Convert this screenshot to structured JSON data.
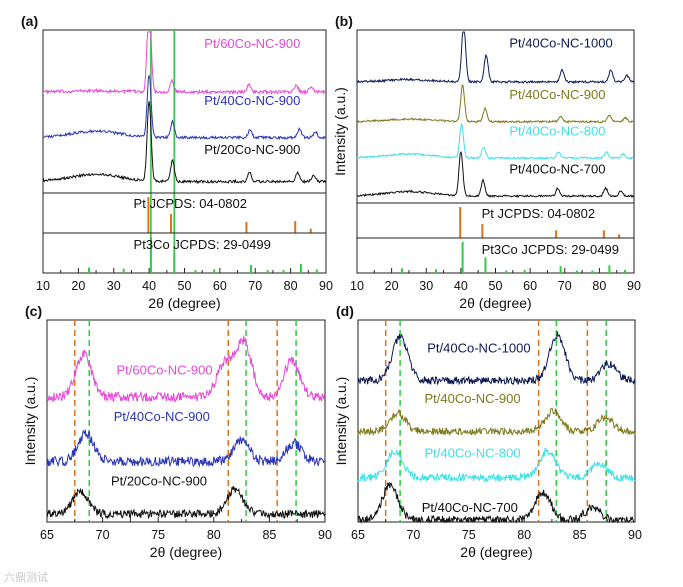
{
  "chart_data": [
    {
      "type": "line",
      "panel": "(a)",
      "xlabel": "2θ (degree)",
      "xlim": [
        10,
        90
      ],
      "xticks": [
        10,
        20,
        30,
        40,
        50,
        60,
        70,
        80,
        90
      ],
      "series": [
        {
          "name": "Pt/60Co-NC-900",
          "color": "#e64ad6",
          "peaks": [
            40.0,
            46.4,
            68.2,
            81.5,
            85.8
          ],
          "heights": [
            1.0,
            0.12,
            0.08,
            0.07,
            0.05
          ],
          "hump": 0.05
        },
        {
          "name": "Pt/40Co-NC-900",
          "color": "#2b35b8",
          "peaks": [
            40.0,
            46.6,
            68.5,
            82.5,
            87.0
          ],
          "heights": [
            0.85,
            0.22,
            0.1,
            0.12,
            0.08
          ],
          "hump": 0.35
        },
        {
          "name": "Pt/20Co-NC-900",
          "color": "#111111",
          "peaks": [
            40.0,
            46.6,
            68.4,
            82.0,
            86.5
          ],
          "heights": [
            1.1,
            0.28,
            0.12,
            0.12,
            0.08
          ],
          "hump": 0.4
        }
      ],
      "reference_patterns": [
        {
          "name": "Pt JCPDS: 04-0802",
          "color": "#e0731a",
          "peaks": [
            39.8,
            46.2,
            67.5,
            81.3,
            85.7
          ],
          "intensity": [
            1.0,
            0.53,
            0.31,
            0.33,
            0.12
          ]
        },
        {
          "name": "Pt3Co JCPDS: 29-0499",
          "color": "#2ecc40",
          "peaks": [
            23.0,
            32.8,
            40.5,
            47.1,
            53.1,
            58.4,
            68.8,
            73.5,
            78.0,
            82.9,
            87.4
          ],
          "intensity": [
            0.15,
            0.12,
            1.0,
            0.55,
            0.08,
            0.1,
            0.22,
            0.08,
            0.08,
            0.25,
            0.1
          ]
        }
      ],
      "guide_lines_2theta": [
        40.5,
        47.1
      ]
    },
    {
      "type": "line",
      "panel": "(b)",
      "xlabel": "2θ (degree)",
      "ylabel": "Intensity (a.u.)",
      "xlim": [
        10,
        90
      ],
      "xticks": [
        10,
        20,
        30,
        40,
        50,
        60,
        70,
        80,
        90
      ],
      "series": [
        {
          "name": "Pt/40Co-NC-1000",
          "color": "#0f1a55",
          "peaks": [
            40.8,
            47.3,
            69.2,
            83.3,
            88.0
          ],
          "heights": [
            1.0,
            0.45,
            0.2,
            0.2,
            0.1
          ],
          "hump": 0.15
        },
        {
          "name": "Pt/40Co-NC-900",
          "color": "#7d7a1c",
          "peaks": [
            40.5,
            47.0,
            68.8,
            82.8,
            87.5
          ],
          "heights": [
            0.7,
            0.25,
            0.1,
            0.12,
            0.08
          ],
          "hump": 0.2
        },
        {
          "name": "Pt/40Co-NC-800",
          "color": "#3fe0e6",
          "peaks": [
            40.2,
            46.6,
            68.2,
            82.0,
            86.8
          ],
          "heights": [
            0.65,
            0.2,
            0.12,
            0.12,
            0.08
          ],
          "hump": 0.3
        },
        {
          "name": "Pt/40Co-NC-700",
          "color": "#111111",
          "peaks": [
            40.0,
            46.4,
            68.0,
            81.8,
            86.2
          ],
          "heights": [
            0.85,
            0.3,
            0.15,
            0.15,
            0.1
          ],
          "hump": 0.35
        }
      ],
      "reference_patterns": [
        {
          "name": "Pt JCPDS: 04-0802",
          "color": "#e0731a",
          "peaks": [
            39.8,
            46.2,
            67.5,
            81.3,
            85.7
          ],
          "intensity": [
            1.0,
            0.45,
            0.25,
            0.25,
            0.12
          ]
        },
        {
          "name": "Pt3Co JCPDS: 29-0499",
          "color": "#2ecc40",
          "peaks": [
            23.0,
            32.8,
            40.5,
            47.1,
            53.1,
            58.4,
            68.8,
            73.5,
            78.0,
            82.9,
            87.4
          ],
          "intensity": [
            0.15,
            0.12,
            1.0,
            0.5,
            0.08,
            0.1,
            0.22,
            0.08,
            0.08,
            0.25,
            0.1
          ]
        }
      ]
    },
    {
      "type": "line",
      "panel": "(c)",
      "xlabel": "2θ (degree)",
      "ylabel": "Intensity (a.u.)",
      "xlim": [
        65,
        90
      ],
      "xticks": [
        65,
        70,
        75,
        80,
        85,
        90
      ],
      "series": [
        {
          "name": "Pt/60Co-NC-900",
          "color": "#e64ad6",
          "peaks": [
            68.3,
            81.0,
            82.7,
            87.0
          ],
          "heights": [
            0.7,
            0.55,
            0.9,
            0.6
          ]
        },
        {
          "name": "Pt/40Co-NC-900",
          "color": "#2b35b8",
          "peaks": [
            68.5,
            82.5,
            87.2
          ],
          "heights": [
            0.45,
            0.35,
            0.3
          ]
        },
        {
          "name": "Pt/20Co-NC-900",
          "color": "#111111",
          "peaks": [
            68.0,
            81.9
          ],
          "heights": [
            0.45,
            0.5
          ]
        }
      ],
      "guide_lines_orange": [
        67.5,
        81.3,
        85.7
      ],
      "guide_lines_green": [
        68.8,
        82.9,
        87.4
      ]
    },
    {
      "type": "line",
      "panel": "(d)",
      "xlabel": "2θ (degree)",
      "ylabel": "Intensity (a.u.)",
      "xlim": [
        65,
        90
      ],
      "xticks": [
        65,
        70,
        75,
        80,
        85,
        90
      ],
      "series": [
        {
          "name": "Pt/40Co-NC-1000",
          "color": "#0f1a55",
          "peaks": [
            68.8,
            83.0,
            87.6
          ],
          "heights": [
            0.9,
            0.95,
            0.35
          ]
        },
        {
          "name": "Pt/40Co-NC-900",
          "color": "#7d7a1c",
          "peaks": [
            68.6,
            82.6,
            87.3
          ],
          "heights": [
            0.4,
            0.45,
            0.3
          ]
        },
        {
          "name": "Pt/40Co-NC-800",
          "color": "#3fe0e6",
          "peaks": [
            68.3,
            82.1,
            86.8
          ],
          "heights": [
            0.55,
            0.55,
            0.3
          ]
        },
        {
          "name": "Pt/40Co-NC-700",
          "color": "#111111",
          "peaks": [
            67.9,
            81.7,
            86.2
          ],
          "heights": [
            0.7,
            0.55,
            0.25
          ]
        }
      ],
      "guide_lines_orange": [
        67.5,
        81.3,
        85.7
      ],
      "guide_lines_green": [
        68.8,
        82.9,
        87.4
      ]
    }
  ],
  "watermark": "六鼎测试"
}
